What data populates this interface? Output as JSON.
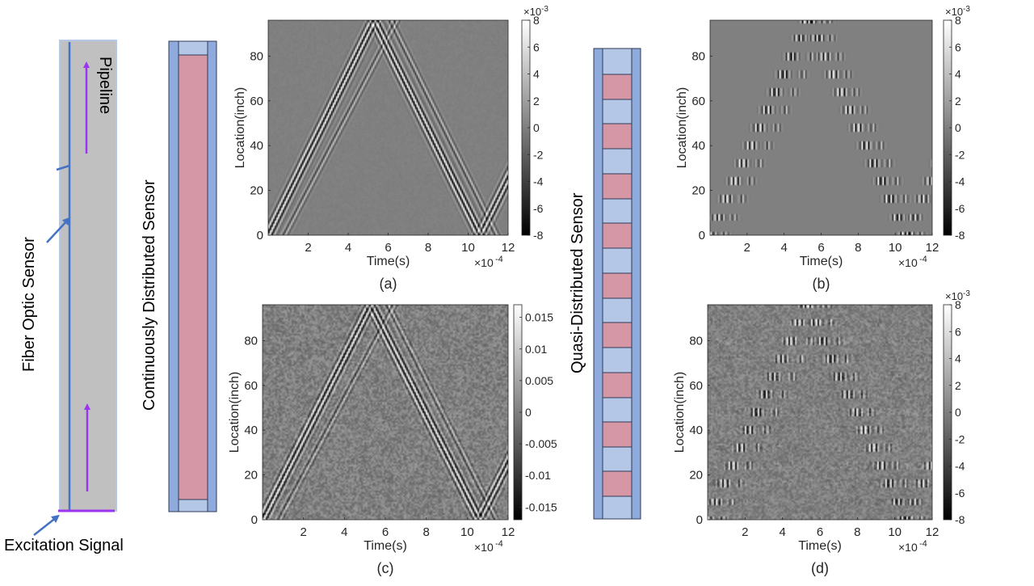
{
  "schematic": {
    "pipeline_label": "Pipeline",
    "fiber_label": "Fiber Optic Sensor",
    "excitation_label": "Excitation Signal",
    "continuous_label": "Continuously Distributed Sensor",
    "quasi_label": "Quasi-Distributed Sensor",
    "colors": {
      "pipe_fill": "#c0c0c0",
      "pipe_border": "#b4c7e7",
      "fiber": "#4472c4",
      "arrow": "#9a36ee",
      "sensor_blue": "#8faadc",
      "sensor_light": "#b4c7e7",
      "sensor_pink": "#d597a5"
    }
  },
  "chart_data": [
    {
      "id": "a",
      "panel_label": "(a)",
      "type": "heatmap",
      "xlabel": "Time(s)",
      "ylabel": "Location(inch)",
      "xlim": [
        0,
        12
      ],
      "ylim": [
        0,
        96
      ],
      "xticks": [
        "2",
        "4",
        "6",
        "8",
        "10",
        "12"
      ],
      "xtick_values": [
        2,
        4,
        6,
        8,
        10,
        12
      ],
      "yticks": [
        "0",
        "20",
        "40",
        "60",
        "80"
      ],
      "ytick_values": [
        0,
        20,
        40,
        60,
        80
      ],
      "x_multiplier": "×10",
      "x_multiplier_exp": "-4",
      "colorbar": {
        "multiplier": "×10",
        "multiplier_exp": "-3",
        "min": -8,
        "max": 8,
        "ticks": [
          "8",
          "6",
          "4",
          "2",
          "0",
          "-2",
          "-4",
          "-6",
          "-8"
        ],
        "tick_values": [
          8,
          6,
          4,
          2,
          0,
          -2,
          -4,
          -6,
          -8
        ]
      },
      "sensor": "continuous",
      "noise": 0.03
    },
    {
      "id": "b",
      "panel_label": "(b)",
      "type": "heatmap",
      "xlabel": "Time(s)",
      "ylabel": "Location(inch)",
      "xlim": [
        0,
        12
      ],
      "ylim": [
        0,
        96
      ],
      "xticks": [
        "2",
        "4",
        "6",
        "8",
        "10",
        "12"
      ],
      "xtick_values": [
        2,
        4,
        6,
        8,
        10,
        12
      ],
      "yticks": [
        "0",
        "20",
        "40",
        "60",
        "80"
      ],
      "ytick_values": [
        0,
        20,
        40,
        60,
        80
      ],
      "x_multiplier": "×10",
      "x_multiplier_exp": "-4",
      "colorbar": {
        "multiplier": "×10",
        "multiplier_exp": "-3",
        "min": -8,
        "max": 8,
        "ticks": [
          "8",
          "6",
          "4",
          "2",
          "0",
          "-2",
          "-4",
          "-6",
          "-8"
        ],
        "tick_values": [
          8,
          6,
          4,
          2,
          0,
          -2,
          -4,
          -6,
          -8
        ]
      },
      "sensor": "quasi",
      "noise": 0.0
    },
    {
      "id": "c",
      "panel_label": "(c)",
      "type": "heatmap",
      "xlabel": "Time(s)",
      "ylabel": "Location(inch)",
      "xlim": [
        0,
        12
      ],
      "ylim": [
        0,
        96
      ],
      "xticks": [
        "2",
        "4",
        "6",
        "8",
        "10",
        "12"
      ],
      "xtick_values": [
        2,
        4,
        6,
        8,
        10,
        12
      ],
      "yticks": [
        "0",
        "20",
        "40",
        "60",
        "80"
      ],
      "ytick_values": [
        0,
        20,
        40,
        60,
        80
      ],
      "x_multiplier": "×10",
      "x_multiplier_exp": "-4",
      "colorbar": {
        "multiplier": "",
        "multiplier_exp": "",
        "min": -0.017,
        "max": 0.017,
        "ticks": [
          "0.015",
          "0.01",
          "0.005",
          "0",
          "-0.005",
          "-0.01",
          "-0.015"
        ],
        "tick_values": [
          0.015,
          0.01,
          0.005,
          0,
          -0.005,
          -0.01,
          -0.015
        ]
      },
      "sensor": "continuous",
      "noise": 0.22
    },
    {
      "id": "d",
      "panel_label": "(d)",
      "type": "heatmap",
      "xlabel": "Time(s)",
      "ylabel": "Location(inch)",
      "xlim": [
        0,
        12
      ],
      "ylim": [
        0,
        96
      ],
      "xticks": [
        "2",
        "4",
        "6",
        "8",
        "10",
        "12"
      ],
      "xtick_values": [
        2,
        4,
        6,
        8,
        10,
        12
      ],
      "yticks": [
        "0",
        "20",
        "40",
        "60",
        "80"
      ],
      "ytick_values": [
        0,
        20,
        40,
        60,
        80
      ],
      "x_multiplier": "×10",
      "x_multiplier_exp": "-4",
      "colorbar": {
        "multiplier": "×10",
        "multiplier_exp": "-3",
        "min": -8,
        "max": 8,
        "ticks": [
          "8",
          "6",
          "4",
          "2",
          "0",
          "-2",
          "-4",
          "-6",
          "-8"
        ],
        "tick_values": [
          8,
          6,
          4,
          2,
          0,
          -2,
          -4,
          -6,
          -8
        ]
      },
      "sensor": "quasi",
      "noise": 0.18
    }
  ]
}
